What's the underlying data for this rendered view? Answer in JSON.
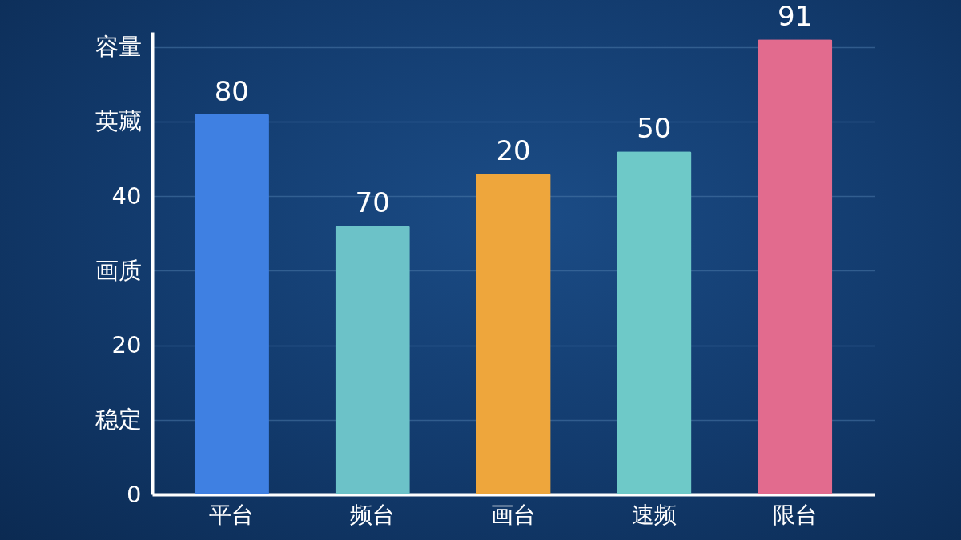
{
  "chart_data": {
    "type": "bar",
    "categories": [
      "平台",
      "频台",
      "画台",
      "速频",
      "限台"
    ],
    "values": [
      51,
      36,
      43,
      46,
      61
    ],
    "colors": [
      "#3f80e2",
      "#6cc2c8",
      "#eea63c",
      "#6ec9c8",
      "#e26b8e"
    ],
    "annotations": [
      {
        "text": "80",
        "x": "平台",
        "y": 51
      },
      {
        "text": "70",
        "x": "频台",
        "y": 36
      },
      {
        "text": "20",
        "x": "画台",
        "y": 43
      },
      {
        "text": "50",
        "x": "速频",
        "y": 46
      },
      {
        "text": "91",
        "x": "限台",
        "y": 61
      }
    ],
    "ylim": [
      0,
      62
    ],
    "yticks": [
      0,
      {
        "value": 10,
        "label": "稳定"
      },
      20,
      {
        "value": 30,
        "label": "画质"
      },
      40,
      {
        "value": 50,
        "label": "英藏"
      },
      {
        "value": 60,
        "label": "容量"
      }
    ],
    "grid": "y"
  }
}
